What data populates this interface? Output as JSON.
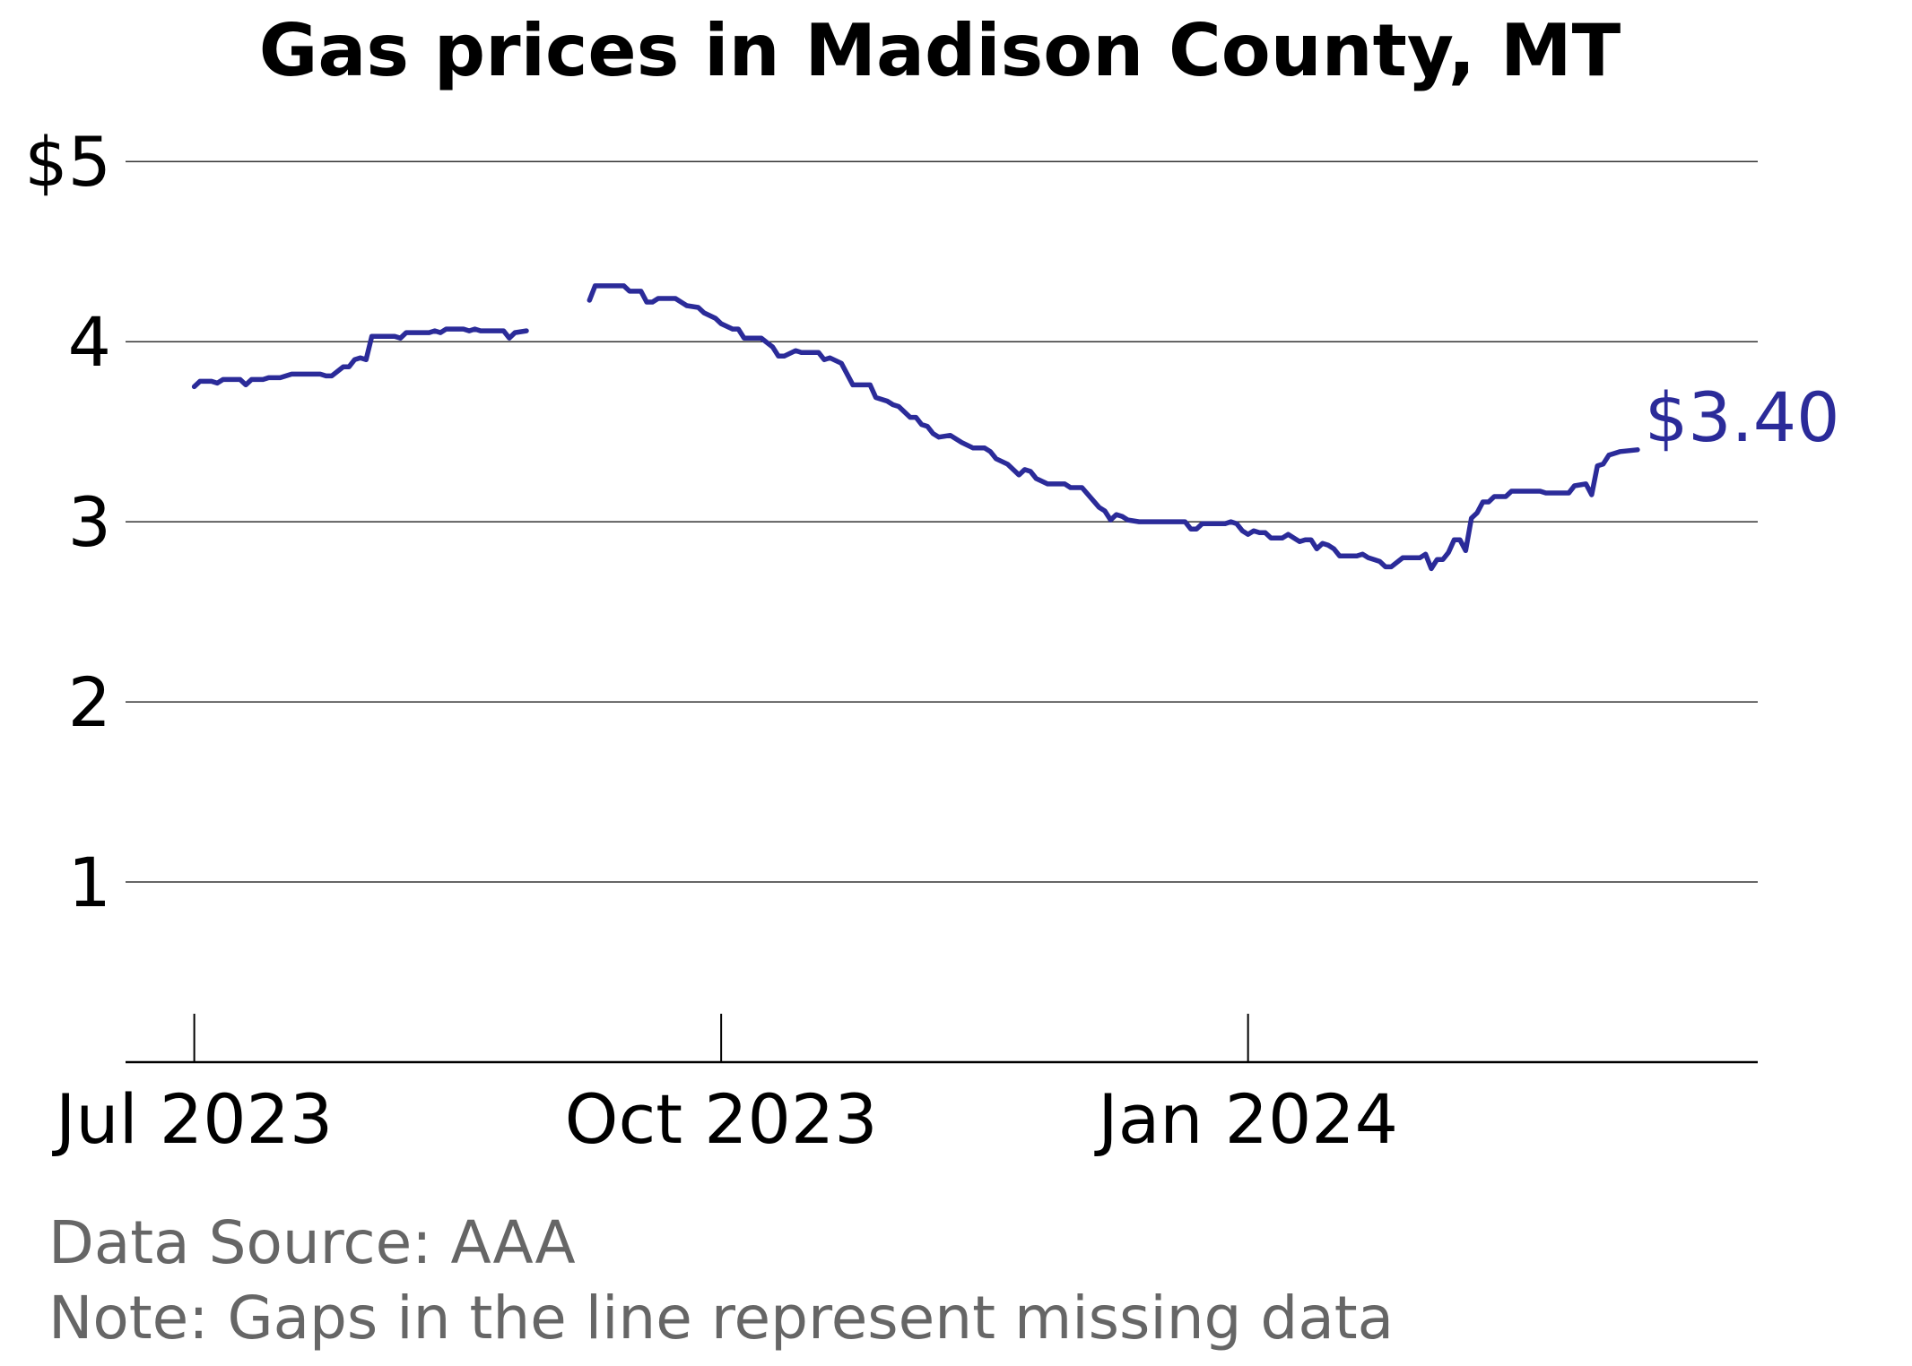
{
  "chart_data": {
    "type": "line",
    "title": "Gas prices in Madison County, MT",
    "xlabel": "",
    "ylabel": "",
    "y_ticks": [
      {
        "value": 1,
        "label": "1"
      },
      {
        "value": 2,
        "label": "2"
      },
      {
        "value": 3,
        "label": "3"
      },
      {
        "value": 4,
        "label": "4"
      },
      {
        "value": 5,
        "label": "$5"
      }
    ],
    "x_ticks": [
      {
        "value": "2023-07-01",
        "label": "Jul 2023"
      },
      {
        "value": "2023-10-01",
        "label": "Oct 2023"
      },
      {
        "value": "2024-01-01",
        "label": "Jan 2024"
      }
    ],
    "x_range": [
      "2023-06-19",
      "2024-03-30"
    ],
    "y_range": [
      0,
      5.25
    ],
    "grid": "horizontal",
    "line_color": "#2b2b99",
    "end_label": "$3.40",
    "segments": [
      [
        [
          "2023-07-01",
          3.75
        ],
        [
          "2023-07-02",
          3.78
        ],
        [
          "2023-07-04",
          3.78
        ],
        [
          "2023-07-05",
          3.77
        ],
        [
          "2023-07-06",
          3.79
        ],
        [
          "2023-07-09",
          3.79
        ],
        [
          "2023-07-10",
          3.76
        ],
        [
          "2023-07-11",
          3.79
        ],
        [
          "2023-07-13",
          3.79
        ],
        [
          "2023-07-14",
          3.8
        ],
        [
          "2023-07-16",
          3.8
        ],
        [
          "2023-07-17",
          3.81
        ],
        [
          "2023-07-18",
          3.82
        ],
        [
          "2023-07-23",
          3.82
        ],
        [
          "2023-07-24",
          3.81
        ],
        [
          "2023-07-25",
          3.81
        ],
        [
          "2023-07-27",
          3.86
        ],
        [
          "2023-07-28",
          3.86
        ],
        [
          "2023-07-29",
          3.9
        ],
        [
          "2023-07-30",
          3.91
        ],
        [
          "2023-07-31",
          3.9
        ],
        [
          "2023-08-01",
          4.03
        ],
        [
          "2023-08-05",
          4.03
        ],
        [
          "2023-08-06",
          4.02
        ],
        [
          "2023-08-07",
          4.05
        ],
        [
          "2023-08-11",
          4.05
        ],
        [
          "2023-08-12",
          4.06
        ],
        [
          "2023-08-13",
          4.05
        ],
        [
          "2023-08-14",
          4.07
        ],
        [
          "2023-08-17",
          4.07
        ],
        [
          "2023-08-18",
          4.06
        ],
        [
          "2023-08-19",
          4.07
        ],
        [
          "2023-08-20",
          4.06
        ],
        [
          "2023-08-24",
          4.06
        ],
        [
          "2023-08-25",
          4.02
        ],
        [
          "2023-08-26",
          4.05
        ],
        [
          "2023-08-28",
          4.06
        ]
      ],
      [
        [
          "2023-09-08",
          4.23
        ],
        [
          "2023-09-09",
          4.31
        ],
        [
          "2023-09-14",
          4.31
        ],
        [
          "2023-09-15",
          4.28
        ],
        [
          "2023-09-17",
          4.28
        ],
        [
          "2023-09-18",
          4.22
        ],
        [
          "2023-09-19",
          4.22
        ],
        [
          "2023-09-20",
          4.24
        ],
        [
          "2023-09-23",
          4.24
        ],
        [
          "2023-09-25",
          4.2
        ],
        [
          "2023-09-27",
          4.19
        ],
        [
          "2023-09-28",
          4.16
        ],
        [
          "2023-09-30",
          4.13
        ],
        [
          "2023-10-01",
          4.1
        ],
        [
          "2023-10-03",
          4.07
        ],
        [
          "2023-10-04",
          4.07
        ],
        [
          "2023-10-05",
          4.02
        ],
        [
          "2023-10-08",
          4.02
        ],
        [
          "2023-10-10",
          3.97
        ],
        [
          "2023-10-11",
          3.92
        ],
        [
          "2023-10-12",
          3.92
        ],
        [
          "2023-10-14",
          3.95
        ],
        [
          "2023-10-15",
          3.94
        ],
        [
          "2023-10-18",
          3.94
        ],
        [
          "2023-10-19",
          3.9
        ],
        [
          "2023-10-20",
          3.91
        ],
        [
          "2023-10-22",
          3.88
        ],
        [
          "2023-10-24",
          3.76
        ],
        [
          "2023-10-27",
          3.76
        ],
        [
          "2023-10-28",
          3.69
        ],
        [
          "2023-10-30",
          3.67
        ],
        [
          "2023-10-31",
          3.65
        ],
        [
          "2023-11-01",
          3.64
        ],
        [
          "2023-11-03",
          3.58
        ],
        [
          "2023-11-04",
          3.58
        ],
        [
          "2023-11-05",
          3.54
        ],
        [
          "2023-11-06",
          3.53
        ],
        [
          "2023-11-07",
          3.49
        ],
        [
          "2023-11-08",
          3.47
        ],
        [
          "2023-11-10",
          3.48
        ],
        [
          "2023-11-12",
          3.44
        ],
        [
          "2023-11-14",
          3.41
        ],
        [
          "2023-11-16",
          3.41
        ],
        [
          "2023-11-17",
          3.39
        ],
        [
          "2023-11-18",
          3.35
        ],
        [
          "2023-11-20",
          3.32
        ],
        [
          "2023-11-22",
          3.26
        ],
        [
          "2023-11-23",
          3.29
        ],
        [
          "2023-11-24",
          3.28
        ],
        [
          "2023-11-25",
          3.24
        ],
        [
          "2023-11-27",
          3.21
        ],
        [
          "2023-11-30",
          3.21
        ],
        [
          "2023-12-01",
          3.19
        ],
        [
          "2023-12-03",
          3.19
        ],
        [
          "2023-12-06",
          3.08
        ],
        [
          "2023-12-07",
          3.06
        ],
        [
          "2023-12-08",
          3.01
        ],
        [
          "2023-12-09",
          3.04
        ],
        [
          "2023-12-10",
          3.03
        ],
        [
          "2023-12-11",
          3.01
        ],
        [
          "2023-12-13",
          3.0
        ],
        [
          "2023-12-21",
          3.0
        ],
        [
          "2023-12-22",
          2.96
        ],
        [
          "2023-12-23",
          2.96
        ],
        [
          "2023-12-24",
          2.99
        ],
        [
          "2023-12-28",
          2.99
        ],
        [
          "2023-12-29",
          3.0
        ],
        [
          "2023-12-30",
          2.99
        ],
        [
          "2023-12-31",
          2.95
        ],
        [
          "2024-01-01",
          2.93
        ],
        [
          "2024-01-02",
          2.95
        ],
        [
          "2024-01-03",
          2.94
        ],
        [
          "2024-01-04",
          2.94
        ],
        [
          "2024-01-05",
          2.91
        ],
        [
          "2024-01-07",
          2.91
        ],
        [
          "2024-01-08",
          2.93
        ],
        [
          "2024-01-09",
          2.91
        ],
        [
          "2024-01-10",
          2.89
        ],
        [
          "2024-01-11",
          2.9
        ],
        [
          "2024-01-12",
          2.9
        ],
        [
          "2024-01-13",
          2.85
        ],
        [
          "2024-01-14",
          2.88
        ],
        [
          "2024-01-15",
          2.87
        ],
        [
          "2024-01-16",
          2.85
        ],
        [
          "2024-01-17",
          2.81
        ],
        [
          "2024-01-20",
          2.81
        ],
        [
          "2024-01-21",
          2.82
        ],
        [
          "2024-01-22",
          2.8
        ],
        [
          "2024-01-23",
          2.79
        ],
        [
          "2024-01-24",
          2.78
        ],
        [
          "2024-01-25",
          2.75
        ],
        [
          "2024-01-26",
          2.75
        ],
        [
          "2024-01-28",
          2.8
        ],
        [
          "2024-01-31",
          2.8
        ],
        [
          "2024-02-01",
          2.82
        ],
        [
          "2024-02-02",
          2.74
        ],
        [
          "2024-02-03",
          2.79
        ],
        [
          "2024-02-04",
          2.79
        ],
        [
          "2024-02-05",
          2.83
        ],
        [
          "2024-02-06",
          2.9
        ],
        [
          "2024-02-07",
          2.9
        ],
        [
          "2024-02-08",
          2.84
        ],
        [
          "2024-02-09",
          3.02
        ],
        [
          "2024-02-10",
          3.05
        ],
        [
          "2024-02-11",
          3.11
        ],
        [
          "2024-02-12",
          3.11
        ],
        [
          "2024-02-13",
          3.14
        ],
        [
          "2024-02-15",
          3.14
        ],
        [
          "2024-02-16",
          3.17
        ],
        [
          "2024-02-21",
          3.17
        ],
        [
          "2024-02-22",
          3.16
        ],
        [
          "2024-02-26",
          3.16
        ],
        [
          "2024-02-27",
          3.2
        ],
        [
          "2024-02-29",
          3.21
        ],
        [
          "2024-03-01",
          3.15
        ],
        [
          "2024-03-02",
          3.31
        ],
        [
          "2024-03-03",
          3.32
        ],
        [
          "2024-03-04",
          3.37
        ],
        [
          "2024-03-05",
          3.38
        ],
        [
          "2024-03-06",
          3.39
        ],
        [
          "2024-03-09",
          3.4
        ]
      ]
    ]
  },
  "footer": {
    "source": "Data Source: AAA",
    "note": "Note: Gaps in the line represent missing data"
  }
}
